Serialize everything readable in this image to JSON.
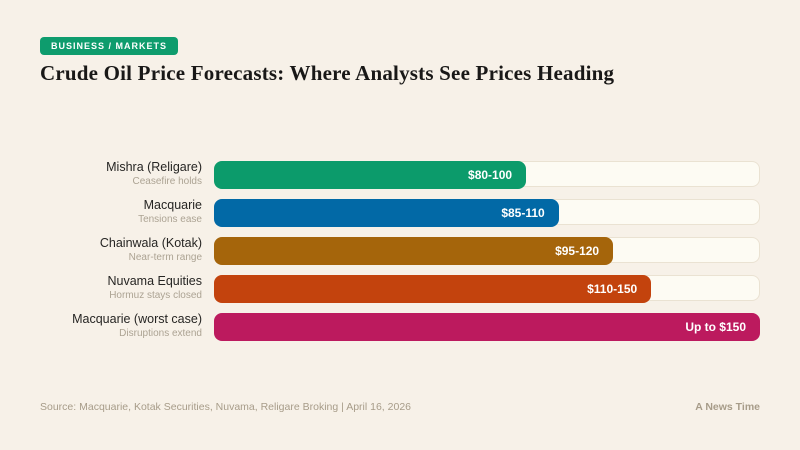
{
  "page": {
    "background": "#F7F1E8"
  },
  "header": {
    "badge": "BUSINESS / MARKETS",
    "badge_color": "#0E9C6D",
    "title": "Crude Oil Price Forecasts: Where Analysts See Prices Heading"
  },
  "rows": [
    {
      "label": "Mishra (Religare)",
      "sublabel": "Ceasefire holds",
      "value": "$80-100",
      "color": "#0C9B6B",
      "bar_pct": 57
    },
    {
      "label": "Macquarie",
      "sublabel": "Tensions ease",
      "value": "$85-110",
      "color": "#0269A6",
      "bar_pct": 63
    },
    {
      "label": "Chainwala (Kotak)",
      "sublabel": "Near-term range",
      "value": "$95-120",
      "color": "#A5650B",
      "bar_pct": 73
    },
    {
      "label": "Nuvama Equities",
      "sublabel": "Hormuz stays closed",
      "value": "$110-150",
      "color": "#C3430D",
      "bar_pct": 80
    },
    {
      "label": "Macquarie (worst case)",
      "sublabel": "Disruptions extend",
      "value": "Up to $150",
      "color": "#BC1A5E",
      "bar_pct": 100
    }
  ],
  "footer": {
    "source": "Source: Macquarie, Kotak Securities, Nuvama, Religare Broking | April 16, 2026",
    "brand": "A News Time"
  },
  "chart_data": {
    "type": "bar",
    "orientation": "horizontal",
    "title": "Crude Oil Price Forecasts: Where Analysts See Prices Heading",
    "categories": [
      "Mishra (Religare)",
      "Macquarie",
      "Chainwala (Kotak)",
      "Nuvama Equities",
      "Macquarie (worst case)"
    ],
    "scenarios": [
      "Ceasefire holds",
      "Tensions ease",
      "Near-term range",
      "Hormuz stays closed",
      "Disruptions extend"
    ],
    "value_labels": [
      "$80-100",
      "$85-110",
      "$95-120",
      "$110-150",
      "Up to $150"
    ],
    "ranges_usd": [
      [
        80,
        100
      ],
      [
        85,
        110
      ],
      [
        95,
        120
      ],
      [
        110,
        150
      ],
      [
        null,
        150
      ]
    ],
    "bar_colors": [
      "#0C9B6B",
      "#0269A6",
      "#A5650B",
      "#C3430D",
      "#BC1A5E"
    ],
    "xlim": [
      0,
      150
    ],
    "grid": false,
    "legend": false
  }
}
